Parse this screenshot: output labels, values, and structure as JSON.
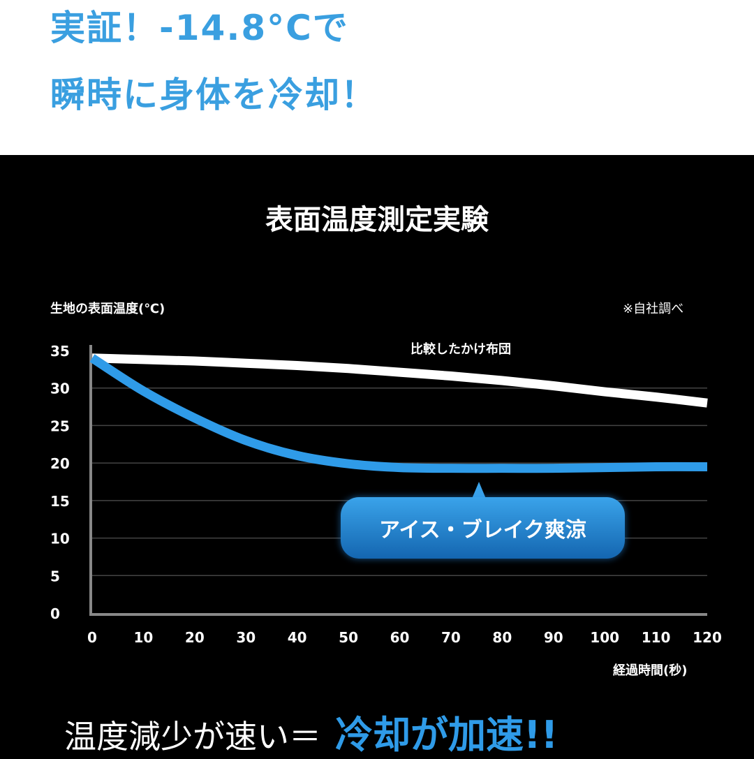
{
  "header": {
    "line1": "実証！-14.8°Cで",
    "line2": "瞬時に身体を冷却！"
  },
  "footer": {
    "text": "温度減少が速い＝",
    "accent": "冷却が加速!!"
  },
  "colors": {
    "accent": "#3a9fe0",
    "series_blue": "#2f9be8",
    "series_white": "#ffffff"
  },
  "chart_data": {
    "type": "line",
    "title": "表面温度測定実験",
    "ylabel": "生地の表面温度(℃)",
    "xlabel": "経過時間(秒)",
    "note": "※自社調べ",
    "xlim": [
      0,
      120
    ],
    "ylim": [
      0,
      35
    ],
    "x_ticks": [
      "0",
      "10",
      "20",
      "30",
      "40",
      "50",
      "60",
      "70",
      "80",
      "90",
      "100",
      "110",
      "120"
    ],
    "y_ticks": [
      "35",
      "30",
      "25",
      "20",
      "15",
      "10",
      "5",
      "0"
    ],
    "grid": true,
    "x": [
      0,
      10,
      20,
      30,
      40,
      50,
      60,
      70,
      80,
      90,
      100,
      110,
      120
    ],
    "series": [
      {
        "name": "比較したかけ布団",
        "color": "#ffffff",
        "values": [
          34,
          33.8,
          33.6,
          33.3,
          33,
          32.6,
          32.1,
          31.6,
          31,
          30.3,
          29.5,
          28.8,
          28
        ]
      },
      {
        "name": "アイス・ブレイク爽涼",
        "color": "#2f9be8",
        "values": [
          34,
          29.6,
          26,
          23,
          21,
          19.9,
          19.4,
          19.3,
          19.3,
          19.3,
          19.4,
          19.5,
          19.5
        ]
      }
    ]
  }
}
